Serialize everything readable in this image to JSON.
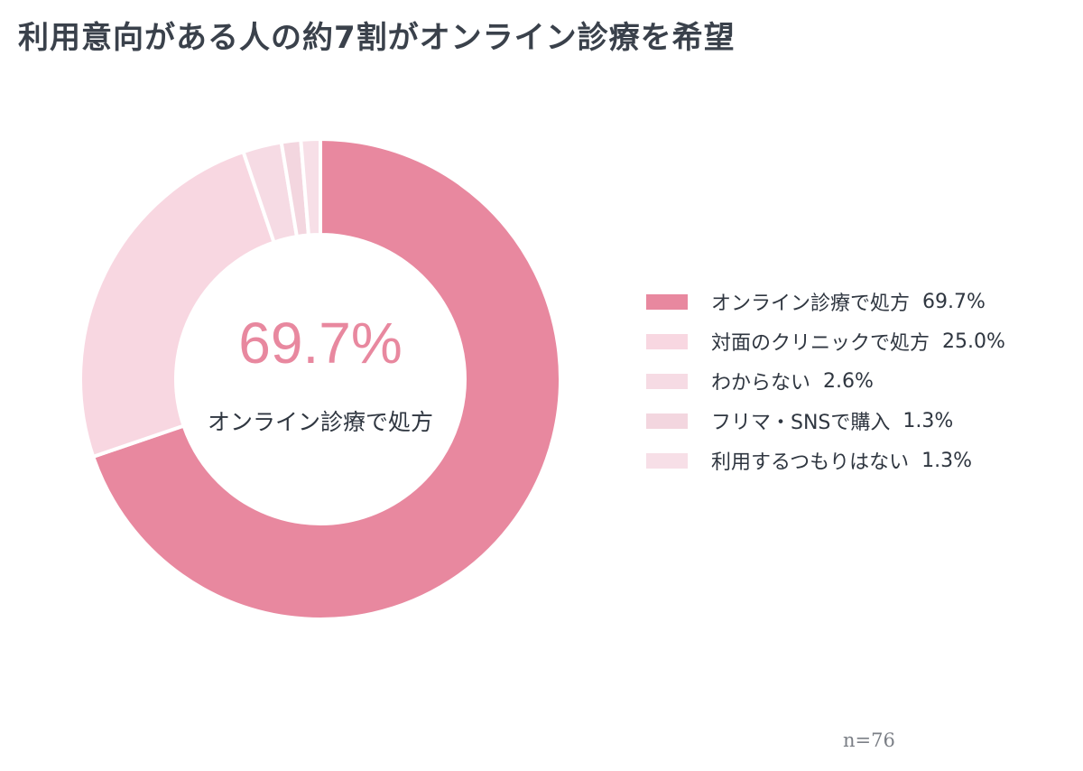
{
  "title": "利用意向がある人の約7割がオンライン診療を希望",
  "note": "n=76",
  "center": {
    "value": "69.7%",
    "label": "オンライン診療で処方"
  },
  "chart_data": {
    "type": "pie",
    "title": "利用意向がある人の約7割がオンライン診療を希望",
    "categories": [
      "オンライン診療で処方",
      "対面のクリニックで処方",
      "わからない",
      "フリマ・SNSで購入",
      "利用するつもりはない"
    ],
    "values": [
      69.7,
      25.0,
      2.6,
      1.3,
      1.3
    ],
    "value_labels": [
      "69.7%",
      "25.0%",
      "2.6%",
      "1.3%",
      "1.3%"
    ],
    "colors": [
      "#e8889f",
      "#f8d7e1",
      "#f6dbe4",
      "#f3d6df",
      "#f7dfe7"
    ],
    "legend_position": "right",
    "donut": true
  },
  "legend": [
    {
      "label": "オンライン診療で処方",
      "value": "69.7%",
      "color": "#e8889f"
    },
    {
      "label": "対面のクリニックで処方",
      "value": "25.0%",
      "color": "#f8d7e1"
    },
    {
      "label": "わからない",
      "value": "2.6%",
      "color": "#f6dbe4"
    },
    {
      "label": "フリマ・SNSで購入",
      "value": "1.3%",
      "color": "#f3d6df"
    },
    {
      "label": "利用するつもりはない",
      "value": "1.3%",
      "color": "#f7dfe7"
    }
  ],
  "colors": {
    "accent": "#e8889f",
    "center_value": "#e8889f",
    "title": "#3a414b"
  }
}
